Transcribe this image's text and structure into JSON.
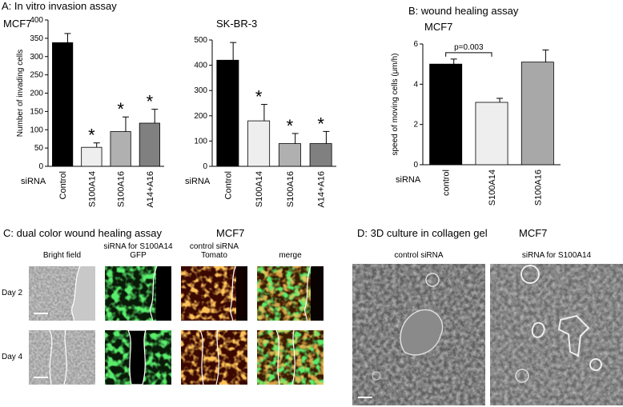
{
  "panel_titles": [
    "A: In vitro invasion assay",
    "B: wound healing assay",
    "C: dual color wound healing assay",
    "D: 3D culture in collagen gel"
  ],
  "chart_data": [
    {
      "type": "bar",
      "title": "MCF7",
      "ylabel": "Number of invading cells",
      "xlabel": "siRNA",
      "categories": [
        "Control",
        "S100A14",
        "S100A16",
        "A14+A16"
      ],
      "series": [
        {
          "values": [
            338,
            52,
            95,
            118
          ],
          "errors": [
            25,
            12,
            40,
            38
          ],
          "colors": [
            "#000000",
            "#eeeeee",
            "#b0b0b0",
            "#808080"
          ]
        }
      ],
      "annotations": [
        {
          "text": "*",
          "category": "S100A14"
        },
        {
          "text": "*",
          "category": "S100A16"
        },
        {
          "text": "*",
          "category": "A14+A16"
        }
      ],
      "ylim": [
        0,
        400
      ],
      "yticks": [
        0,
        50,
        100,
        150,
        200,
        250,
        300,
        350,
        400
      ]
    },
    {
      "type": "bar",
      "title": "SK-BR-3",
      "xlabel": "siRNA",
      "categories": [
        "Control",
        "S100A14",
        "S100A16",
        "A14+A16"
      ],
      "series": [
        {
          "values": [
            420,
            180,
            90,
            90
          ],
          "errors": [
            70,
            65,
            40,
            48
          ],
          "colors": [
            "#000000",
            "#eeeeee",
            "#b0b0b0",
            "#808080"
          ]
        }
      ],
      "annotations": [
        {
          "text": "*",
          "category": "S100A14"
        },
        {
          "text": "*",
          "category": "S100A16"
        },
        {
          "text": "*",
          "category": "A14+A16"
        }
      ],
      "ylim": [
        0,
        500
      ],
      "yticks": [
        0,
        100,
        200,
        300,
        400,
        500
      ]
    },
    {
      "type": "bar",
      "title": "MCF7",
      "ylabel": "speed of moving cells (μm/h)",
      "xlabel": "siRNA",
      "categories": [
        "control",
        "S100A14",
        "S100A16"
      ],
      "series": [
        {
          "values": [
            5.0,
            3.1,
            5.1
          ],
          "errors": [
            0.25,
            0.2,
            0.6
          ],
          "colors": [
            "#000000",
            "#eeeeee",
            "#a8a8a8"
          ]
        }
      ],
      "bracket": {
        "text": "p=0.003",
        "from": "control",
        "to": "S100A14"
      },
      "ylim": [
        0,
        6
      ],
      "yticks": [
        0,
        2,
        4,
        6
      ]
    }
  ],
  "panel_c": {
    "subtitle": "MCF7",
    "columns": [
      [
        "Bright field"
      ],
      [
        "siRNA for S100A14",
        "GFP"
      ],
      [
        "control siRNA",
        "Tomato"
      ],
      [
        "merge"
      ]
    ],
    "rows": [
      "Day 2",
      "Day 4"
    ]
  },
  "panel_d": {
    "subtitle": "MCF7",
    "columns": [
      "control siRNA",
      "siRNA for S100A14"
    ]
  }
}
